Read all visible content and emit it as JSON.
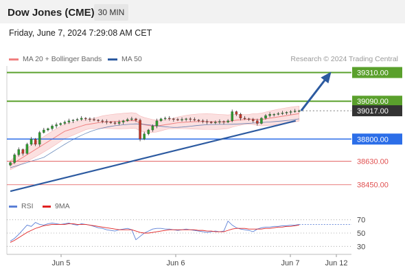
{
  "header": {
    "title": "Dow Jones (CME)",
    "interval": "30 MIN"
  },
  "datetime": "Friday, June 7, 2024 7:29:08 AM CET",
  "legend": {
    "ma20": {
      "label": "MA 20 + Bollinger Bands",
      "color": "#f08080"
    },
    "ma50": {
      "label": "MA 50",
      "color": "#2c5aa0"
    }
  },
  "credit": "Research © 2024 Trading Central",
  "colors": {
    "resistance": "#5aa02c",
    "support": "#2c6ee8",
    "lower": "#e05050",
    "candle_up": "#2e9b2e",
    "candle_down": "#c0392b",
    "band_fill": "#fbe0e0",
    "trend": "#2c5aa0",
    "current": "#333333"
  },
  "chart_data": [
    {
      "type": "candlestick",
      "timeframe": "30 MIN",
      "ylim": [
        38380,
        39360
      ],
      "x_tick_labels": [
        "Jun 5",
        "Jun 6",
        "Jun 7",
        "Jun 12"
      ],
      "levels": [
        {
          "label": "39310.00",
          "value": 39310,
          "kind": "resistance"
        },
        {
          "label": "39090.00",
          "value": 39090,
          "kind": "resistance"
        },
        {
          "label": "39017.00",
          "value": 39017,
          "kind": "current"
        },
        {
          "label": "38800.00",
          "value": 38800,
          "kind": "support"
        },
        {
          "label": "38630.00",
          "value": 38630,
          "kind": "lower"
        },
        {
          "label": "38450.00",
          "value": 38450,
          "kind": "lower"
        }
      ],
      "closes": [
        38620,
        38680,
        38720,
        38690,
        38760,
        38800,
        38760,
        38850,
        38870,
        38880,
        38900,
        38910,
        38920,
        38930,
        38940,
        38945,
        38950,
        38960,
        38955,
        38950,
        38945,
        38940,
        38935,
        38930,
        38925,
        38920,
        38930,
        38940,
        38950,
        38955,
        38945,
        38800,
        38840,
        38870,
        38900,
        38940,
        38955,
        38960,
        38955,
        38950,
        38945,
        38950,
        38955,
        38950,
        38945,
        38940,
        38935,
        38930,
        38925,
        38930,
        38935,
        38930,
        38940,
        39010,
        38990,
        38960,
        38955,
        38950,
        38940,
        38920,
        38960,
        38980,
        38990,
        38990,
        38995,
        39000,
        39005,
        39010,
        39015,
        39017
      ],
      "ma20": [
        38600,
        38620,
        38640,
        38660,
        38680,
        38700,
        38720,
        38740,
        38760,
        38780,
        38800,
        38820,
        38840,
        38860,
        38870,
        38880,
        38890,
        38900,
        38910,
        38915,
        38920,
        38925,
        38930,
        38932,
        38934,
        38935,
        38936,
        38938,
        38940,
        38942,
        38940,
        38920,
        38910,
        38905,
        38900,
        38900,
        38905,
        38910,
        38915,
        38920,
        38925,
        38928,
        38930,
        38932,
        38933,
        38934,
        38934,
        38934,
        38933,
        38932,
        38932,
        38932,
        38933,
        38940,
        38945,
        38948,
        38950,
        38952,
        38953,
        38950,
        38950,
        38955,
        38960,
        38965,
        38970,
        38975,
        38980,
        38985,
        38990,
        38995
      ],
      "trendline": {
        "from": [
          0,
          38400
        ],
        "to": [
          69,
          38940
        ]
      },
      "projection": {
        "from": [
          69,
          39017
        ],
        "to": [
          73,
          39310
        ]
      }
    },
    {
      "type": "line",
      "name": "RSI",
      "legend": [
        {
          "label": "RSI",
          "color": "#5b7fd6"
        },
        {
          "label": "9MA",
          "color": "#e02020"
        }
      ],
      "y_tick_labels": [
        "70",
        "50",
        "30"
      ],
      "ylim": [
        20,
        80
      ],
      "rsi": [
        38,
        42,
        48,
        55,
        62,
        60,
        66,
        63,
        62,
        64,
        65,
        64,
        63,
        64,
        65,
        63,
        62,
        64,
        63,
        62,
        60,
        58,
        57,
        55,
        54,
        53,
        55,
        56,
        57,
        55,
        40,
        45,
        50,
        53,
        56,
        57,
        57,
        56,
        56,
        55,
        54,
        55,
        56,
        55,
        54,
        53,
        52,
        51,
        52,
        53,
        52,
        53,
        68,
        62,
        58,
        56,
        55,
        54,
        52,
        56,
        58,
        59,
        59,
        60,
        60,
        61,
        61,
        62,
        62,
        63
      ],
      "ma9": [
        36,
        39,
        43,
        47,
        51,
        54,
        57,
        59,
        61,
        62,
        63,
        63,
        63,
        63,
        64,
        64,
        63,
        63,
        63,
        62,
        61,
        60,
        59,
        58,
        57,
        56,
        55,
        55,
        55,
        55,
        53,
        51,
        50,
        50,
        51,
        52,
        53,
        54,
        55,
        55,
        55,
        55,
        55,
        55,
        55,
        54,
        54,
        53,
        53,
        52,
        52,
        52,
        54,
        56,
        57,
        57,
        57,
        56,
        56,
        56,
        56,
        57,
        57,
        58,
        59,
        59,
        60,
        60,
        61,
        62
      ]
    }
  ]
}
